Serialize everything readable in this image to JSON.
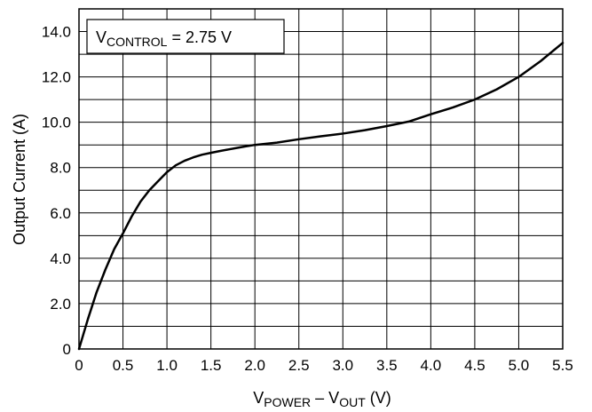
{
  "chart_data": {
    "type": "line",
    "annotation": {
      "main": "V",
      "sub": "CONTROL",
      "rest": " = 2.75 V"
    },
    "xlabel": {
      "a_main": "V",
      "a_sub": "POWER",
      "mid": " – ",
      "b_main": "V",
      "b_sub": "OUT",
      "rest": " (V)"
    },
    "ylabel": "Output Current (A)",
    "xlim": [
      0,
      5.5
    ],
    "ylim": [
      0,
      15
    ],
    "x_ticks": [
      "0",
      "0.5",
      "1.0",
      "1.5",
      "2.0",
      "2.5",
      "3.0",
      "3.5",
      "4.0",
      "4.5",
      "5.0",
      "5.5"
    ],
    "y_ticks": [
      "0",
      "2.0",
      "4.0",
      "6.0",
      "8.0",
      "10.0",
      "12.0",
      "14.0"
    ],
    "x_grid_step": 0.5,
    "y_grid_step": 1.0,
    "grid": true,
    "series": [
      {
        "x": [
          0,
          0.1,
          0.2,
          0.3,
          0.4,
          0.5,
          0.6,
          0.7,
          0.8,
          0.9,
          1.0,
          1.1,
          1.2,
          1.3,
          1.4,
          1.5,
          1.6,
          1.7,
          1.8,
          1.9,
          2.0,
          2.25,
          2.5,
          2.75,
          3.0,
          3.25,
          3.5,
          3.75,
          4.0,
          4.25,
          4.5,
          4.75,
          5.0,
          5.25,
          5.5
        ],
        "y": [
          0,
          1.3,
          2.5,
          3.5,
          4.4,
          5.1,
          5.85,
          6.5,
          7.0,
          7.4,
          7.8,
          8.1,
          8.3,
          8.45,
          8.57,
          8.65,
          8.73,
          8.8,
          8.87,
          8.94,
          9.0,
          9.1,
          9.25,
          9.38,
          9.5,
          9.65,
          9.83,
          10.03,
          10.35,
          10.65,
          11.0,
          11.45,
          12.0,
          12.7,
          13.5
        ]
      }
    ]
  }
}
